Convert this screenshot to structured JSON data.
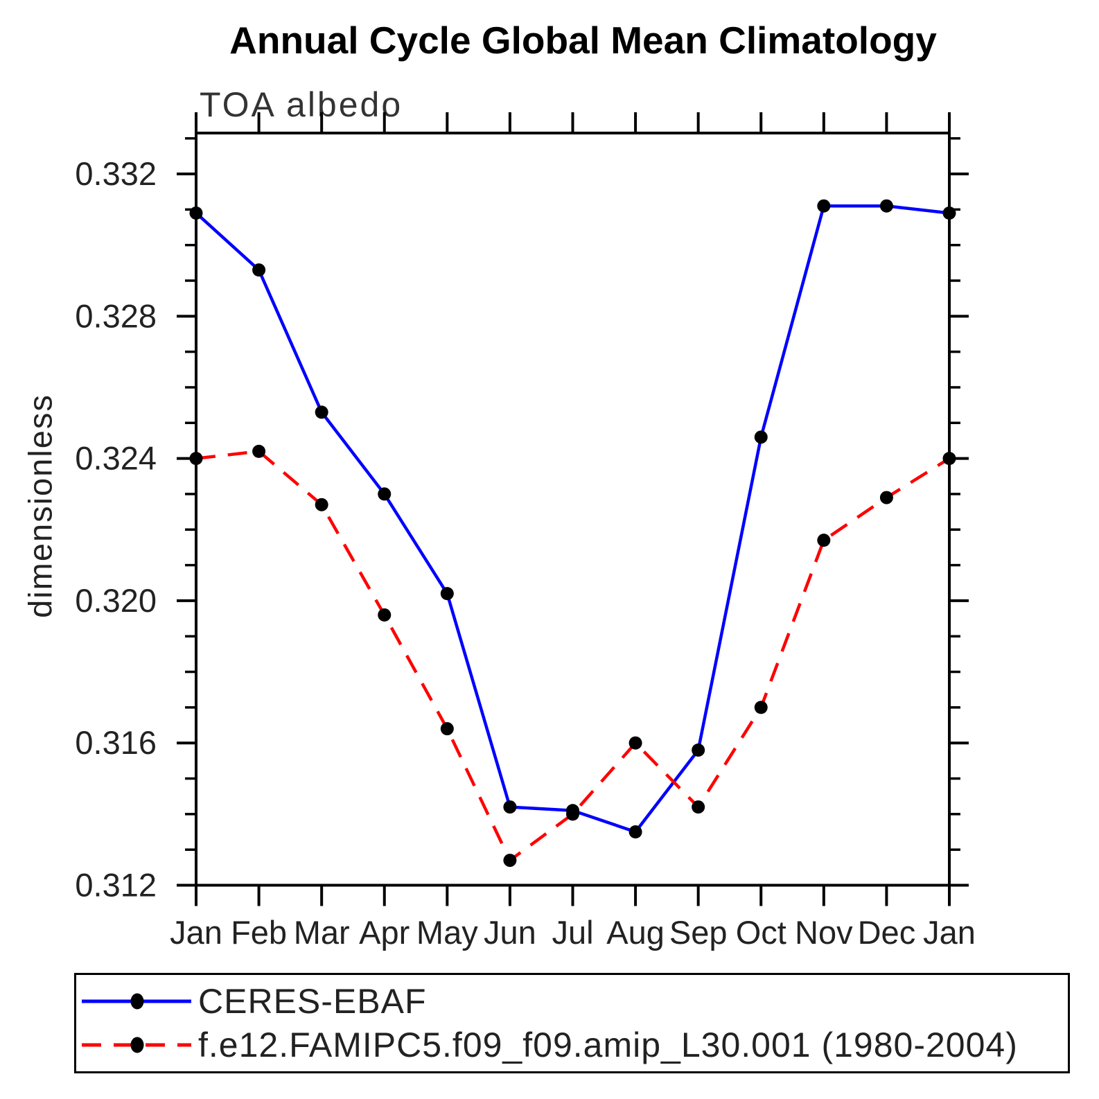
{
  "title": "Annual Cycle Global Mean Climatology",
  "subtitle": "TOA albedo",
  "ylabel": "dimensionless",
  "chart_data": {
    "type": "line",
    "x_categories": [
      "Jan",
      "Feb",
      "Mar",
      "Apr",
      "May",
      "Jun",
      "Jul",
      "Aug",
      "Sep",
      "Oct",
      "Nov",
      "Dec",
      "Jan"
    ],
    "series": [
      {
        "name": "CERES-EBAF",
        "color": "#0000ff",
        "line_style": "solid",
        "marker": "filled-circle",
        "marker_color": "#000000",
        "values": [
          0.3309,
          0.3293,
          0.3253,
          0.323,
          0.3202,
          0.3142,
          0.3141,
          0.3135,
          0.3158,
          0.3246,
          0.3311,
          0.3311,
          0.3309
        ]
      },
      {
        "name": "f.e12.FAMIPC5.f09_f09.amip_L30.001 (1980-2004)",
        "color": "#ff0000",
        "line_style": "dashed",
        "marker": "filled-circle",
        "marker_color": "#000000",
        "values": [
          0.324,
          0.3242,
          0.3227,
          0.3196,
          0.3164,
          0.3127,
          0.314,
          0.316,
          0.3142,
          0.317,
          0.3217,
          0.3229,
          0.324
        ]
      }
    ],
    "ylim": [
      0.312,
      0.33315
    ],
    "yticks_major": [
      0.312,
      0.316,
      0.32,
      0.324,
      0.328,
      0.332
    ],
    "ytick_labels": [
      "0.312",
      "0.316",
      "0.320",
      "0.324",
      "0.328",
      "0.332"
    ],
    "ytick_minor_step": 0.001,
    "grid": false,
    "legend_position": "bottom",
    "frame_color": "#000000",
    "text_color": "#222222"
  }
}
